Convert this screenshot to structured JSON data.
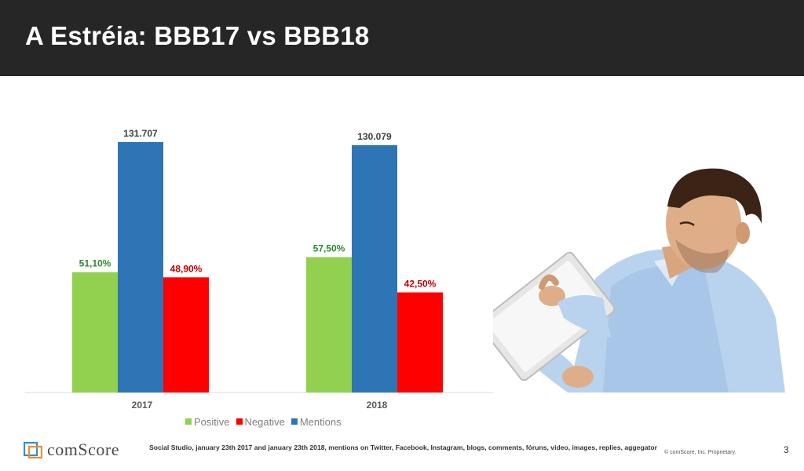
{
  "header": {
    "title": "A Estréia: BBB17 vs BBB18"
  },
  "chart_data": {
    "type": "bar",
    "categories": [
      "2017",
      "2018"
    ],
    "series": [
      {
        "name": "Positive",
        "color": "#92d050",
        "label_color": "#2e8b2e",
        "values": [
          51.1,
          57.5
        ],
        "labels": [
          "51,10%",
          "57,50%"
        ],
        "axis": "percent"
      },
      {
        "name": "Mentions",
        "color": "#2e75b6",
        "label_color": "#404040",
        "values": [
          131707,
          130079
        ],
        "labels": [
          "131.707",
          "130.079"
        ],
        "axis": "mentions"
      },
      {
        "name": "Negative",
        "color": "#ff0000",
        "label_color": "#c00000",
        "values": [
          48.9,
          42.5
        ],
        "labels": [
          "48,90%",
          "42,50%"
        ],
        "axis": "percent"
      }
    ],
    "legend_order": [
      "Positive",
      "Negative",
      "Mentions"
    ],
    "legend_position": "bottom",
    "grid": false
  },
  "footer": {
    "logo_text": "comScore",
    "source": "Social Studio, january 23th 2017 and january  23th 2018, mentions on Twitter, Facebook, Instagram, blogs, comments, fóruns, video, images, replies, aggegator",
    "copyright": "© comScore, Inc. Proprietary.",
    "page_number": "3"
  },
  "icons": {
    "illustration": "man-with-tablet-illustration",
    "logo": "comscore-logo-icon"
  }
}
